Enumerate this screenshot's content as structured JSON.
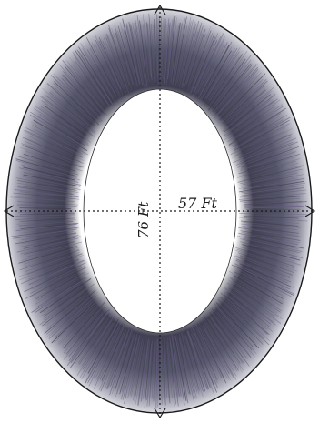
{
  "figure": {
    "width_label": "57 Ft",
    "height_label": "76 Ft"
  },
  "colors": {
    "ink": "#1a1a1a",
    "hatch_dark": "#3a3a48",
    "hatch_mid": "#5c5c70",
    "hatch_tint": "#6a5a8a",
    "paper": "#ffffff"
  }
}
